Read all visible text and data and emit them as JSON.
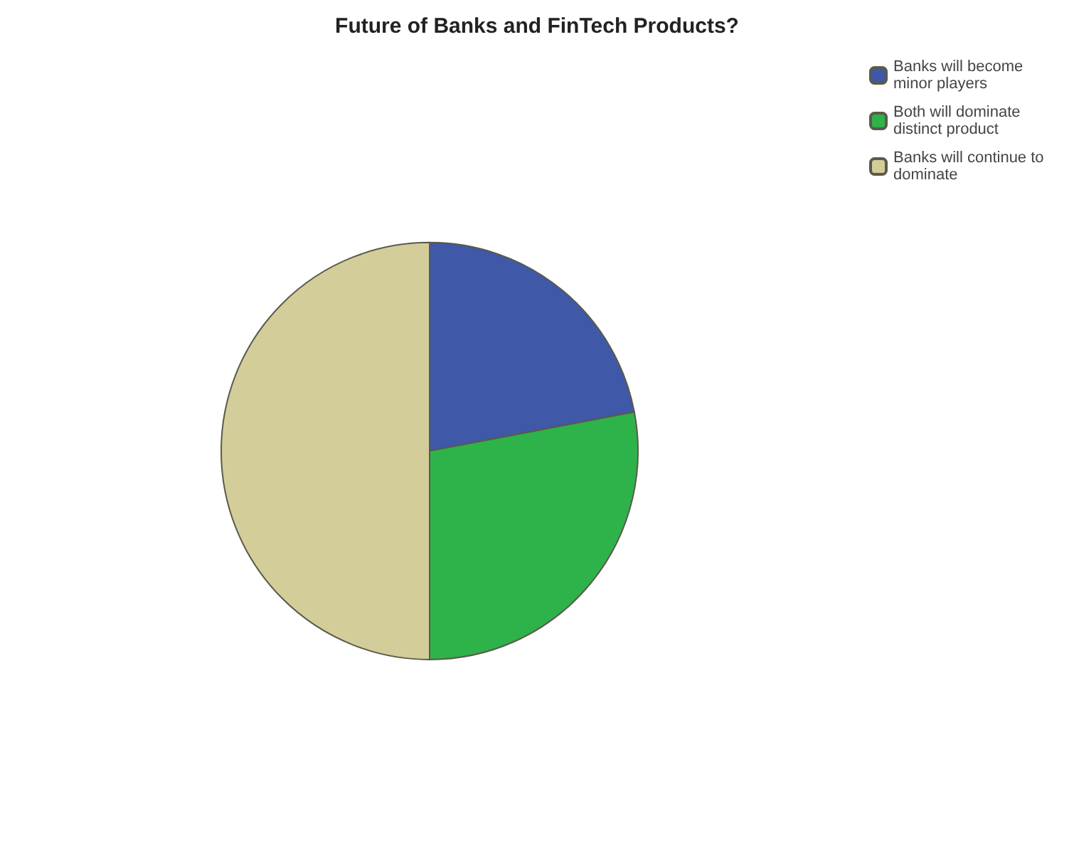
{
  "chart_data": {
    "type": "pie",
    "title": "Future of Banks and FinTech Products?",
    "categories": [
      "Banks will become minor players",
      "Both will dominate distinct product",
      "Banks will continue to dominate"
    ],
    "values": [
      22,
      28,
      50
    ],
    "colors": [
      "#3f58a8",
      "#2db34a",
      "#d3cd9a"
    ],
    "legend": "top right"
  }
}
